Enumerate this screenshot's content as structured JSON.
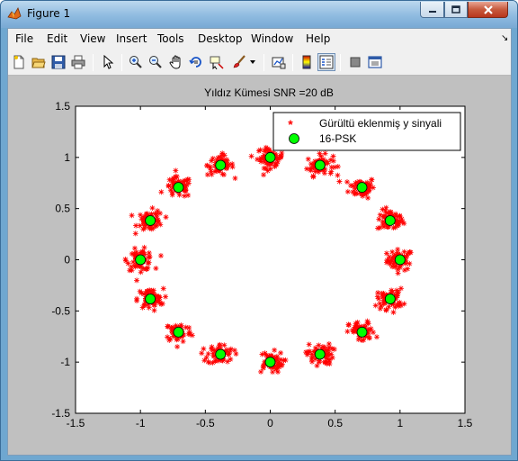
{
  "window": {
    "title": "Figure 1"
  },
  "menu": {
    "items": [
      "File",
      "Edit",
      "View",
      "Insert",
      "Tools",
      "Desktop",
      "Window",
      "Help"
    ]
  },
  "toolbar": {
    "buttons": [
      "new-figure-icon",
      "open-file-icon",
      "save-icon",
      "print-icon",
      "edit-plot-arrow-icon",
      "zoom-in-icon",
      "zoom-out-icon",
      "pan-hand-icon",
      "rotate-3d-icon",
      "data-cursor-icon",
      "brush-icon",
      "link-plot-icon",
      "colorbar-icon",
      "legend-icon",
      "hide-plot-tools-icon",
      "show-plot-tools-icon"
    ]
  },
  "chart_data": {
    "type": "scatter",
    "title": "Yıldız Kümesi  SNR =20 dB",
    "xlabel": "",
    "ylabel": "",
    "xlim": [
      -1.5,
      1.5
    ],
    "ylim": [
      -1.5,
      1.5
    ],
    "xticks": [
      "-1.5",
      "-1",
      "-0.5",
      "0",
      "0.5",
      "1",
      "1.5"
    ],
    "yticks": [
      "1.5",
      "1",
      "0.5",
      "0",
      "-0.5",
      "-1",
      "-1.5"
    ],
    "grid": false,
    "legend_position": "top-right",
    "series": [
      {
        "name": "Gürültü eklenmiş y sinyali",
        "marker": "*",
        "color": "#ff0000",
        "noise_std": 0.05,
        "points_per_symbol": 60
      },
      {
        "name": "16-PSK",
        "marker": "o",
        "color": "#00ff00",
        "edgecolor": "#000000",
        "points": [
          [
            1.0,
            0.0
          ],
          [
            0.924,
            0.383
          ],
          [
            0.707,
            0.707
          ],
          [
            0.383,
            0.924
          ],
          [
            0.0,
            1.0
          ],
          [
            -0.383,
            0.924
          ],
          [
            -0.707,
            0.707
          ],
          [
            -0.924,
            0.383
          ],
          [
            -1.0,
            0.0
          ],
          [
            -0.924,
            -0.383
          ],
          [
            -0.707,
            -0.707
          ],
          [
            -0.383,
            -0.924
          ],
          [
            0.0,
            -1.0
          ],
          [
            0.383,
            -0.924
          ],
          [
            0.707,
            -0.707
          ],
          [
            0.924,
            -0.383
          ]
        ]
      }
    ]
  }
}
